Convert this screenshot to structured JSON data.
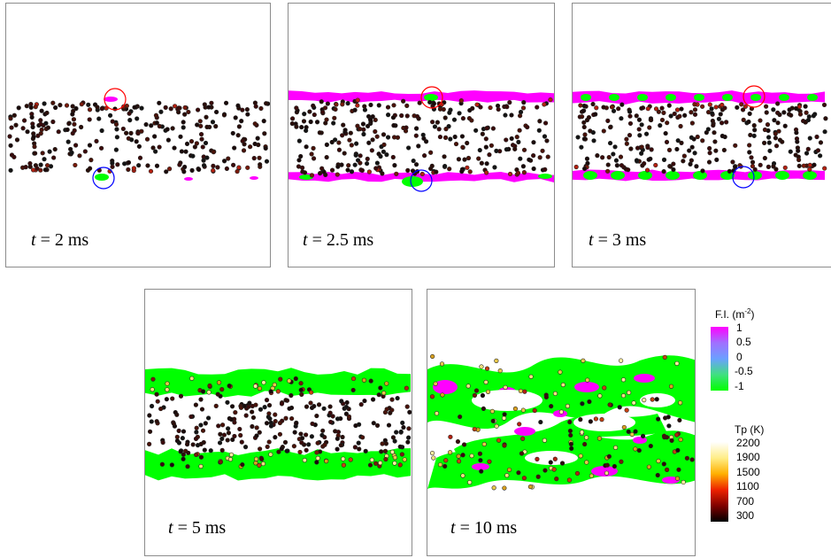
{
  "panels": [
    {
      "time_var": "t",
      "time_text": "= 2 ms",
      "stage": 0
    },
    {
      "time_var": "t",
      "time_text": "= 2.5 ms",
      "stage": 1
    },
    {
      "time_var": "t",
      "time_text": "= 3 ms",
      "stage": 2
    },
    {
      "time_var": "t",
      "time_text": "= 5 ms",
      "stage": 3
    },
    {
      "time_var": "t",
      "time_text": "= 10 ms",
      "stage": 4
    }
  ],
  "fi_legend": {
    "title": "F.I. (m",
    "title_sup": "-2",
    "title_end": ")",
    "ticks": [
      "1",
      "0.5",
      "0",
      "-0.5",
      "-1"
    ],
    "colors": [
      "#ff00ff",
      "#a070ff",
      "#6aa0ff",
      "#40e080",
      "#00ff00"
    ]
  },
  "tp_legend": {
    "title": "Tp (K)",
    "ticks": [
      "2200",
      "1900",
      "1500",
      "1100",
      "700",
      "300"
    ],
    "colors": [
      "#ffffff",
      "#ffee88",
      "#ffb000",
      "#ee2200",
      "#800000",
      "#000000"
    ]
  },
  "colors": {
    "magenta": "#ff00ff",
    "green": "#00ff00",
    "red_circle": "#ff0000",
    "blue_circle": "#0000ff"
  }
}
